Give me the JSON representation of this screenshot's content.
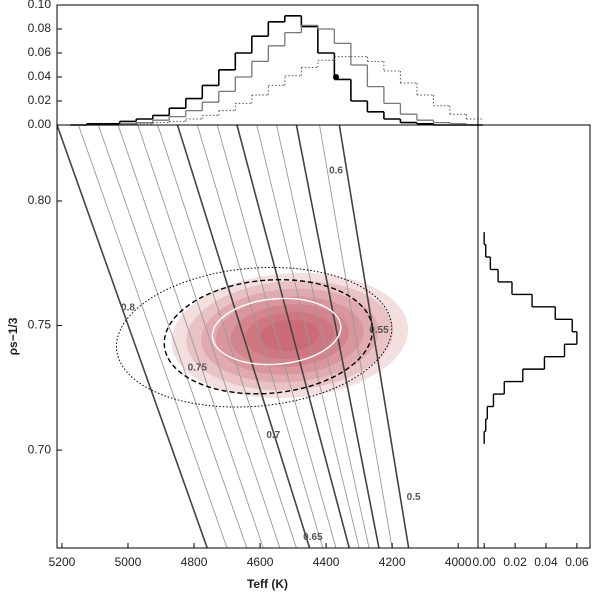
{
  "chart_data": [
    {
      "type": "step-x",
      "x": [
        5150,
        5100,
        5050,
        5000,
        4950,
        4900,
        4850,
        4800,
        4750,
        4700,
        4650,
        4600,
        4550,
        4500,
        4450,
        4400,
        4350,
        4300,
        4250,
        4200,
        4150,
        4100,
        4050,
        4000,
        3950
      ],
      "bin_width": 50,
      "xlim": [
        5215,
        3940
      ],
      "ylim": [
        0,
        0.1
      ],
      "yticks": [
        {
          "value": 0,
          "label": "0.00"
        },
        {
          "value": 0.02,
          "label": "0.02"
        },
        {
          "value": 0.04,
          "label": "0.04"
        },
        {
          "value": 0.06,
          "label": "0.06"
        },
        {
          "value": 0.08,
          "label": "0.08"
        },
        {
          "value": 0.1,
          "label": "0.10"
        }
      ],
      "series": [
        {
          "color": "#000000",
          "style": "solid",
          "width": 1.6,
          "values": [
            0,
            0.001,
            0.001,
            0.003,
            0.005,
            0.008,
            0.014,
            0.022,
            0.033,
            0.046,
            0.06,
            0.074,
            0.086,
            0.091,
            0.082,
            0.06,
            0.038,
            0.02,
            0.011,
            0.005,
            0.002,
            0.001,
            0,
            0,
            0
          ]
        },
        {
          "color": "#777777",
          "style": "solid",
          "width": 1.3,
          "values": [
            0,
            0,
            0,
            0.001,
            0.002,
            0.004,
            0.007,
            0.012,
            0.019,
            0.028,
            0.04,
            0.053,
            0.066,
            0.077,
            0.083,
            0.08,
            0.068,
            0.05,
            0.032,
            0.018,
            0.009,
            0.004,
            0.002,
            0.001,
            0
          ]
        },
        {
          "color": "#555555",
          "style": "dotted",
          "width": 1,
          "values": [
            0,
            0,
            0,
            0,
            0.001,
            0.002,
            0.003,
            0.005,
            0.008,
            0.012,
            0.018,
            0.025,
            0.033,
            0.041,
            0.048,
            0.054,
            0.057,
            0.057,
            0.053,
            0.045,
            0.035,
            0.025,
            0.016,
            0.009,
            0.005
          ]
        }
      ],
      "point": {
        "x": 4370,
        "y": 0.04,
        "color": "#000000"
      }
    },
    {
      "type": "contour",
      "xlabel": "Teff (K)",
      "ylabel": "ρs−1/3",
      "xlim": [
        5215,
        3940
      ],
      "ylim": [
        0.6607,
        0.8305
      ],
      "xticks": [
        5200,
        5000,
        4800,
        4600,
        4400,
        4200,
        4000
      ],
      "yticks": [
        {
          "value": 0.7,
          "label": "0.70"
        },
        0.75,
        {
          "value": 0.8,
          "label": "0.80"
        }
      ],
      "tracks": [
        {
          "x": [
            5215,
            4760
          ],
          "y": [
            0.8305,
            0.6607
          ],
          "color": "#444444"
        },
        {
          "x": [
            5150,
            4700
          ],
          "y": [
            0.8305,
            0.6607
          ],
          "color": "#999999"
        },
        {
          "x": [
            5090,
            4640
          ],
          "y": [
            0.8305,
            0.6607
          ],
          "color": "#999999"
        },
        {
          "x": [
            5030,
            4590
          ],
          "y": [
            0.8305,
            0.6607
          ],
          "color": "#999999"
        },
        {
          "x": [
            4970,
            4540
          ],
          "y": [
            0.8305,
            0.6607
          ],
          "color": "#999999"
        },
        {
          "x": [
            4910,
            4490
          ],
          "y": [
            0.8305,
            0.6607
          ],
          "color": "#999999"
        },
        {
          "x": [
            4850,
            4450
          ],
          "y": [
            0.8305,
            0.6607
          ],
          "color": "#444444"
        },
        {
          "x": [
            4790,
            4410
          ],
          "y": [
            0.8305,
            0.6607
          ],
          "color": "#999999"
        },
        {
          "x": [
            4730,
            4370
          ],
          "y": [
            0.8305,
            0.6607
          ],
          "color": "#999999"
        },
        {
          "x": [
            4670,
            4330
          ],
          "y": [
            0.8305,
            0.6607
          ],
          "color": "#444444"
        },
        {
          "x": [
            4610,
            4300
          ],
          "y": [
            0.8305,
            0.6607
          ],
          "color": "#999999"
        },
        {
          "x": [
            4550,
            4270
          ],
          "y": [
            0.8305,
            0.6607
          ],
          "color": "#999999"
        },
        {
          "x": [
            4490,
            4240
          ],
          "y": [
            0.8305,
            0.6607
          ],
          "color": "#444444"
        },
        {
          "x": [
            4420,
            4200
          ],
          "y": [
            0.8305,
            0.6607
          ],
          "color": "#999999"
        },
        {
          "x": [
            4360,
            4150
          ],
          "y": [
            0.8305,
            0.6607
          ],
          "color": "#444444"
        }
      ],
      "density": {
        "cx": 4510,
        "cy": 0.746,
        "rx": 230,
        "ry": 0.016,
        "color": "#b4303c"
      },
      "contours": [
        {
          "cx": 4618,
          "cy": 0.7453,
          "rx": 418,
          "ry": 0.0277,
          "color": "#000000",
          "style": "dotted"
        },
        {
          "cx": 4575,
          "cy": 0.7455,
          "rx": 316,
          "ry": 0.0227,
          "color": "#000000",
          "style": "dashed"
        },
        {
          "cx": 4550,
          "cy": 0.7476,
          "rx": 195,
          "ry": 0.0131,
          "color": "#ffffff",
          "style": "solid"
        }
      ],
      "annotations": [
        {
          "text": "0.6",
          "x": 4370,
          "y": 0.812
        },
        {
          "text": "0.8",
          "x": 5000,
          "y": 0.757
        },
        {
          "text": "0.75",
          "x": 4790,
          "y": 0.733
        },
        {
          "text": "0.7",
          "x": 4560,
          "y": 0.706
        },
        {
          "text": "0.65",
          "x": 4440,
          "y": 0.665
        },
        {
          "text": "0.55",
          "x": 4240,
          "y": 0.748
        },
        {
          "text": "0.5",
          "x": 4135,
          "y": 0.681
        }
      ]
    },
    {
      "type": "step-y",
      "y": [
        0.705,
        0.71,
        0.715,
        0.72,
        0.725,
        0.73,
        0.735,
        0.74,
        0.745,
        0.75,
        0.755,
        0.76,
        0.765,
        0.77,
        0.775,
        0.78,
        0.785
      ],
      "bin_width": 0.005,
      "values": [
        0,
        0.001,
        0.002,
        0.006,
        0.013,
        0.025,
        0.039,
        0.052,
        0.06,
        0.057,
        0.046,
        0.031,
        0.018,
        0.009,
        0.004,
        0.001,
        0
      ],
      "color": "#000000",
      "xlim": [
        -0.004,
        0.0685
      ],
      "ylim": [
        0.6607,
        0.8305
      ],
      "xticks": [
        {
          "value": 0,
          "label": "0.00"
        },
        0.02,
        0.04,
        0.06
      ]
    }
  ]
}
